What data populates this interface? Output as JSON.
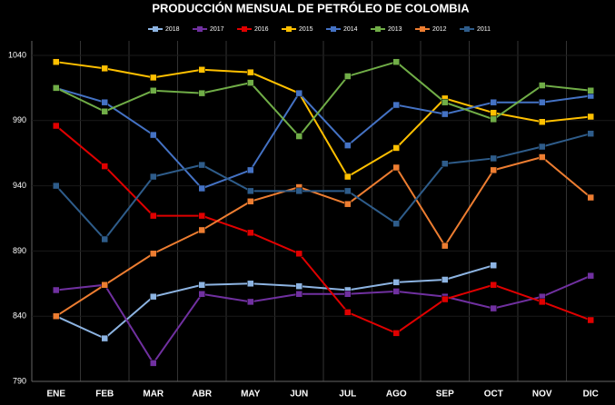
{
  "chart_data": {
    "type": "line",
    "title": "PRODUCCIÓN MENSUAL DE PETRÓLEO DE COLOMBIA",
    "categories": [
      "ENE",
      "FEB",
      "MAR",
      "ABR",
      "MAY",
      "JUN",
      "JUL",
      "AGO",
      "SEP",
      "OCT",
      "NOV",
      "DIC"
    ],
    "series": [
      {
        "name": "2018",
        "color": "#8db4e2",
        "values": [
          840,
          823,
          855,
          864,
          865,
          863,
          860,
          866,
          868,
          879,
          null,
          null
        ]
      },
      {
        "name": "2017",
        "color": "#7030a0",
        "values": [
          860,
          864,
          804,
          857,
          851,
          857,
          857,
          859,
          855,
          846,
          855,
          871
        ]
      },
      {
        "name": "2016",
        "color": "#e00000",
        "values": [
          986,
          955,
          917,
          917,
          904,
          888,
          843,
          827,
          853,
          864,
          851,
          837
        ]
      },
      {
        "name": "2015",
        "color": "#ffc000",
        "values": [
          1035,
          1030,
          1023,
          1029,
          1027,
          1011,
          947,
          969,
          1007,
          996,
          989,
          993
        ]
      },
      {
        "name": "2014",
        "color": "#4472c4",
        "values": [
          1015,
          1004,
          979,
          938,
          952,
          1011,
          971,
          1002,
          995,
          1004,
          1004,
          1009
        ]
      },
      {
        "name": "2013",
        "color": "#70ad47",
        "values": [
          1015,
          997,
          1013,
          1011,
          1019,
          978,
          1024,
          1035,
          1004,
          991,
          1017,
          1013
        ]
      },
      {
        "name": "2012",
        "color": "#ed7d31",
        "values": [
          840,
          864,
          888,
          906,
          928,
          939,
          926,
          954,
          894,
          952,
          962,
          931
        ]
      },
      {
        "name": "2011",
        "color": "#2e5c8a",
        "values": [
          940,
          899,
          947,
          956,
          936,
          936,
          936,
          911,
          957,
          961,
          970,
          980
        ]
      }
    ],
    "ylim": [
      790,
      1040
    ],
    "yticks": [
      790,
      840,
      890,
      940,
      990,
      1040
    ],
    "grid": true,
    "legend": "top"
  }
}
